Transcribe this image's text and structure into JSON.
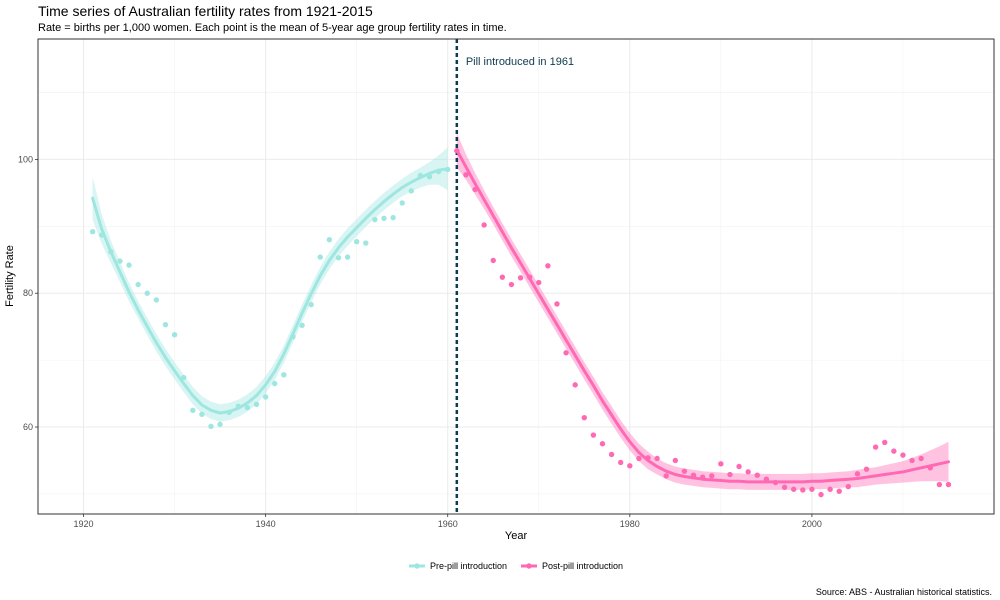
{
  "chart_data": {
    "type": "scatter",
    "title": "Time series of Australian fertility rates from 1921-2015",
    "subtitle": "Rate = births per 1,000 women. Each point is the mean of 5-year age group fertility rates in time.",
    "caption": "Source: ABS - Australian historical statistics.",
    "xlabel": "Year",
    "ylabel": "Fertility Rate",
    "xlim": [
      1915,
      2020
    ],
    "ylim": [
      47,
      118
    ],
    "xticks": [
      1920,
      1940,
      1960,
      1980,
      2000
    ],
    "yticks": [
      60,
      80,
      100
    ],
    "grid": true,
    "legend_position": "bottom",
    "annotation": {
      "x": 1961,
      "text": "Pill introduced in 1961",
      "color": "#0d3b4f"
    },
    "series": [
      {
        "name": "Pre-pill introduction",
        "color": "#9ee6e0",
        "x": [
          1921,
          1922,
          1923,
          1924,
          1925,
          1926,
          1927,
          1928,
          1929,
          1930,
          1931,
          1932,
          1933,
          1934,
          1935,
          1936,
          1937,
          1938,
          1939,
          1940,
          1941,
          1942,
          1943,
          1944,
          1945,
          1946,
          1947,
          1948,
          1949,
          1950,
          1951,
          1952,
          1953,
          1954,
          1955,
          1956,
          1957,
          1958,
          1959,
          1960
        ],
        "y": [
          89.2,
          88.7,
          86.2,
          84.8,
          84.2,
          81.3,
          80.0,
          79.0,
          75.3,
          73.8,
          67.4,
          62.5,
          61.9,
          60.1,
          60.4,
          62.2,
          63.1,
          62.9,
          63.4,
          64.5,
          66.5,
          67.8,
          73.5,
          75.2,
          78.3,
          85.4,
          88.0,
          85.3,
          85.4,
          87.7,
          87.5,
          91.0,
          91.2,
          91.3,
          93.5,
          95.3,
          97.6,
          97.4,
          98.2,
          98.5
        ],
        "smooth_y": [
          94.2,
          89.6,
          86.2,
          83.2,
          80.2,
          77.5,
          75.0,
          72.6,
          70.4,
          68.4,
          66.5,
          64.7,
          63.3,
          62.5,
          62.1,
          62.3,
          62.8,
          63.6,
          64.7,
          66.3,
          68.3,
          70.9,
          73.9,
          77.0,
          79.9,
          82.6,
          84.9,
          86.8,
          88.4,
          89.8,
          91.2,
          92.5,
          93.7,
          94.8,
          95.8,
          96.6,
          97.3,
          97.9,
          98.4,
          98.6
        ],
        "band_halfwidth": [
          3.2,
          2.2,
          1.7,
          1.5,
          1.4,
          1.3,
          1.3,
          1.3,
          1.3,
          1.3,
          1.3,
          1.3,
          1.3,
          1.3,
          1.3,
          1.3,
          1.3,
          1.3,
          1.3,
          1.3,
          1.3,
          1.3,
          1.3,
          1.3,
          1.3,
          1.3,
          1.3,
          1.3,
          1.3,
          1.3,
          1.3,
          1.3,
          1.3,
          1.3,
          1.3,
          1.4,
          1.5,
          1.7,
          2.2,
          3.2
        ]
      },
      {
        "name": "Post-pill introduction",
        "color": "#ff69b4",
        "x": [
          1961,
          1962,
          1963,
          1964,
          1965,
          1966,
          1967,
          1968,
          1969,
          1970,
          1971,
          1972,
          1973,
          1974,
          1975,
          1976,
          1977,
          1978,
          1979,
          1980,
          1981,
          1982,
          1983,
          1984,
          1985,
          1986,
          1987,
          1988,
          1989,
          1990,
          1991,
          1992,
          1993,
          1994,
          1995,
          1996,
          1997,
          1998,
          1999,
          2000,
          2001,
          2002,
          2003,
          2004,
          2005,
          2006,
          2007,
          2008,
          2009,
          2010,
          2011,
          2012,
          2013,
          2014,
          2015
        ],
        "y": [
          101.3,
          97.7,
          95.5,
          90.2,
          84.9,
          82.4,
          81.3,
          82.3,
          82.4,
          81.6,
          84.1,
          78.4,
          71.1,
          66.3,
          61.4,
          58.8,
          57.5,
          55.9,
          54.7,
          54.2,
          55.3,
          55.4,
          55.3,
          52.7,
          55.0,
          53.4,
          52.8,
          52.5,
          52.7,
          54.5,
          52.9,
          54.1,
          53.3,
          52.8,
          52.2,
          51.7,
          51.0,
          50.7,
          50.6,
          50.7,
          49.9,
          50.7,
          50.4,
          51.1,
          53.0,
          53.7,
          57.0,
          57.7,
          56.4,
          55.8,
          55.0,
          55.3,
          53.9,
          51.4,
          51.4
        ],
        "smooth_y": [
          101.4,
          98.9,
          96.4,
          94.0,
          91.6,
          89.2,
          86.8,
          84.5,
          82.2,
          79.9,
          77.6,
          75.3,
          73.0,
          70.7,
          68.4,
          66.2,
          63.9,
          61.8,
          59.7,
          57.8,
          56.2,
          55.0,
          54.1,
          53.4,
          52.9,
          52.6,
          52.4,
          52.2,
          52.1,
          52.0,
          51.9,
          51.9,
          51.8,
          51.8,
          51.8,
          51.8,
          51.8,
          51.8,
          51.8,
          51.9,
          51.9,
          52.0,
          52.1,
          52.2,
          52.3,
          52.5,
          52.7,
          52.9,
          53.1,
          53.3,
          53.6,
          53.9,
          54.2,
          54.5,
          54.8
        ],
        "band_halfwidth": [
          2.6,
          1.9,
          1.6,
          1.4,
          1.3,
          1.3,
          1.3,
          1.3,
          1.3,
          1.3,
          1.3,
          1.3,
          1.3,
          1.3,
          1.3,
          1.3,
          1.3,
          1.3,
          1.3,
          1.3,
          1.3,
          1.3,
          1.2,
          1.2,
          1.2,
          1.2,
          1.2,
          1.2,
          1.2,
          1.2,
          1.2,
          1.2,
          1.2,
          1.2,
          1.2,
          1.2,
          1.2,
          1.2,
          1.2,
          1.2,
          1.2,
          1.2,
          1.2,
          1.2,
          1.3,
          1.3,
          1.3,
          1.4,
          1.5,
          1.6,
          1.8,
          2.0,
          2.3,
          2.6,
          3.0
        ]
      }
    ]
  }
}
